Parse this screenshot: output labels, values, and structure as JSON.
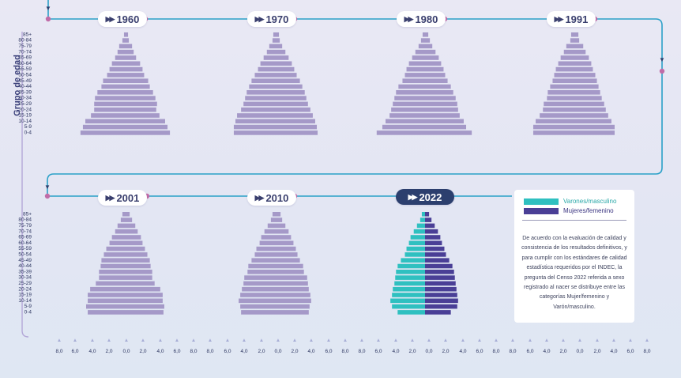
{
  "y_axis_title": "Grupo de edad",
  "legend": {
    "male_label": "Varones/masculino",
    "female_label": "Mujeres/femenino",
    "male_color": "#2fc0c0",
    "female_color": "#4a3f96"
  },
  "note": "De acuerdo con la evaluación de calidad y consistencia de los resultados definitivos, y para cumplir con los estándares de calidad estadística requeridos por el INDEC, la pregunta del Censo 2022 referida a sexo registrado al nacer se distribuye entre las categorías Mujer/femenino y Varón/masculino.",
  "colors": {
    "historic": "#a599c8",
    "connector": "#2aa0c8",
    "node": "#c06ca8"
  },
  "chart_data": {
    "type": "bar",
    "subtype": "population-pyramid",
    "age_groups": [
      "85+",
      "80-84",
      "75-79",
      "70-74",
      "65-69",
      "60-64",
      "55-59",
      "50-54",
      "45-49",
      "40-44",
      "35-39",
      "30-34",
      "25-29",
      "20-24",
      "15-19",
      "10-14",
      "5-9",
      "0-4"
    ],
    "x_ticks": [
      "8,0",
      "6,0",
      "4,0",
      "2,0",
      "0,0",
      "2,0",
      "4,0",
      "6,0",
      "8,0"
    ],
    "xlim": [
      -8,
      8
    ],
    "unit": "%",
    "panels": [
      {
        "year": "1960",
        "male": [
          0.2,
          0.4,
          0.8,
          1.0,
          1.3,
          1.7,
          2.0,
          2.3,
          2.8,
          3.0,
          3.5,
          3.8,
          3.9,
          3.9,
          4.3,
          5.0,
          5.3,
          5.6
        ],
        "female": [
          0.3,
          0.4,
          0.8,
          1.0,
          1.3,
          1.8,
          2.1,
          2.3,
          2.8,
          3.0,
          3.4,
          3.7,
          3.9,
          3.8,
          4.2,
          4.9,
          5.2,
          5.5
        ]
      },
      {
        "year": "1970",
        "male": [
          0.3,
          0.4,
          0.8,
          1.1,
          1.5,
          1.9,
          2.2,
          2.6,
          3.0,
          3.3,
          3.6,
          3.8,
          4.0,
          4.3,
          4.8,
          5.0,
          5.2,
          5.2
        ],
        "female": [
          0.4,
          0.5,
          0.8,
          1.2,
          1.6,
          2.0,
          2.3,
          2.6,
          3.0,
          3.3,
          3.6,
          3.8,
          4.0,
          4.3,
          4.6,
          4.9,
          5.1,
          5.2
        ]
      },
      {
        "year": "1980",
        "male": [
          0.3,
          0.5,
          0.8,
          1.2,
          1.6,
          2.0,
          2.3,
          2.5,
          2.8,
          3.3,
          3.6,
          3.8,
          4.0,
          4.2,
          4.4,
          4.9,
          5.3,
          6.0
        ],
        "female": [
          0.4,
          0.6,
          0.9,
          1.3,
          1.7,
          2.0,
          2.3,
          2.5,
          2.8,
          3.2,
          3.5,
          3.8,
          4.0,
          4.1,
          4.3,
          4.8,
          5.1,
          5.8
        ]
      },
      {
        "year": "1991",
        "male": [
          0.4,
          0.5,
          1.0,
          1.3,
          1.7,
          2.0,
          2.3,
          2.5,
          2.7,
          3.0,
          3.3,
          3.4,
          3.8,
          3.9,
          4.3,
          4.8,
          5.1,
          5.1
        ],
        "female": [
          0.5,
          0.6,
          1.1,
          1.4,
          1.8,
          2.1,
          2.3,
          2.6,
          2.8,
          3.0,
          3.2,
          3.4,
          3.7,
          3.9,
          4.2,
          4.6,
          5.0,
          5.0
        ]
      },
      {
        "year": "2001",
        "male": [
          0.4,
          0.6,
          1.0,
          1.3,
          1.7,
          2.0,
          2.4,
          2.7,
          3.0,
          3.1,
          3.3,
          3.3,
          3.7,
          4.4,
          4.7,
          4.7,
          4.9,
          4.7
        ],
        "female": [
          0.5,
          0.8,
          1.2,
          1.5,
          1.9,
          2.1,
          2.4,
          2.7,
          3.0,
          3.1,
          3.3,
          3.3,
          3.6,
          4.3,
          4.6,
          4.6,
          4.8,
          4.7
        ]
      },
      {
        "year": "2010",
        "male": [
          0.4,
          0.6,
          1.0,
          1.4,
          1.8,
          2.0,
          2.4,
          2.6,
          3.0,
          3.4,
          3.5,
          3.9,
          4.0,
          4.2,
          4.4,
          4.6,
          4.4,
          4.3
        ],
        "female": [
          0.6,
          0.8,
          1.2,
          1.6,
          1.9,
          2.2,
          2.5,
          2.7,
          3.0,
          3.4,
          3.5,
          3.9,
          4.0,
          4.1,
          4.3,
          4.4,
          4.2,
          4.1
        ]
      },
      {
        "year": "2022",
        "highlight": true,
        "male": [
          0.4,
          0.6,
          1.0,
          1.4,
          1.8,
          2.0,
          2.3,
          2.5,
          3.0,
          3.4,
          3.6,
          3.7,
          3.8,
          4.0,
          4.1,
          4.3,
          4.1,
          3.4
        ],
        "female": [
          0.5,
          0.8,
          1.2,
          1.6,
          1.9,
          2.1,
          2.4,
          2.6,
          3.0,
          3.4,
          3.6,
          3.7,
          3.8,
          3.9,
          4.0,
          4.1,
          4.0,
          3.2
        ]
      }
    ]
  }
}
